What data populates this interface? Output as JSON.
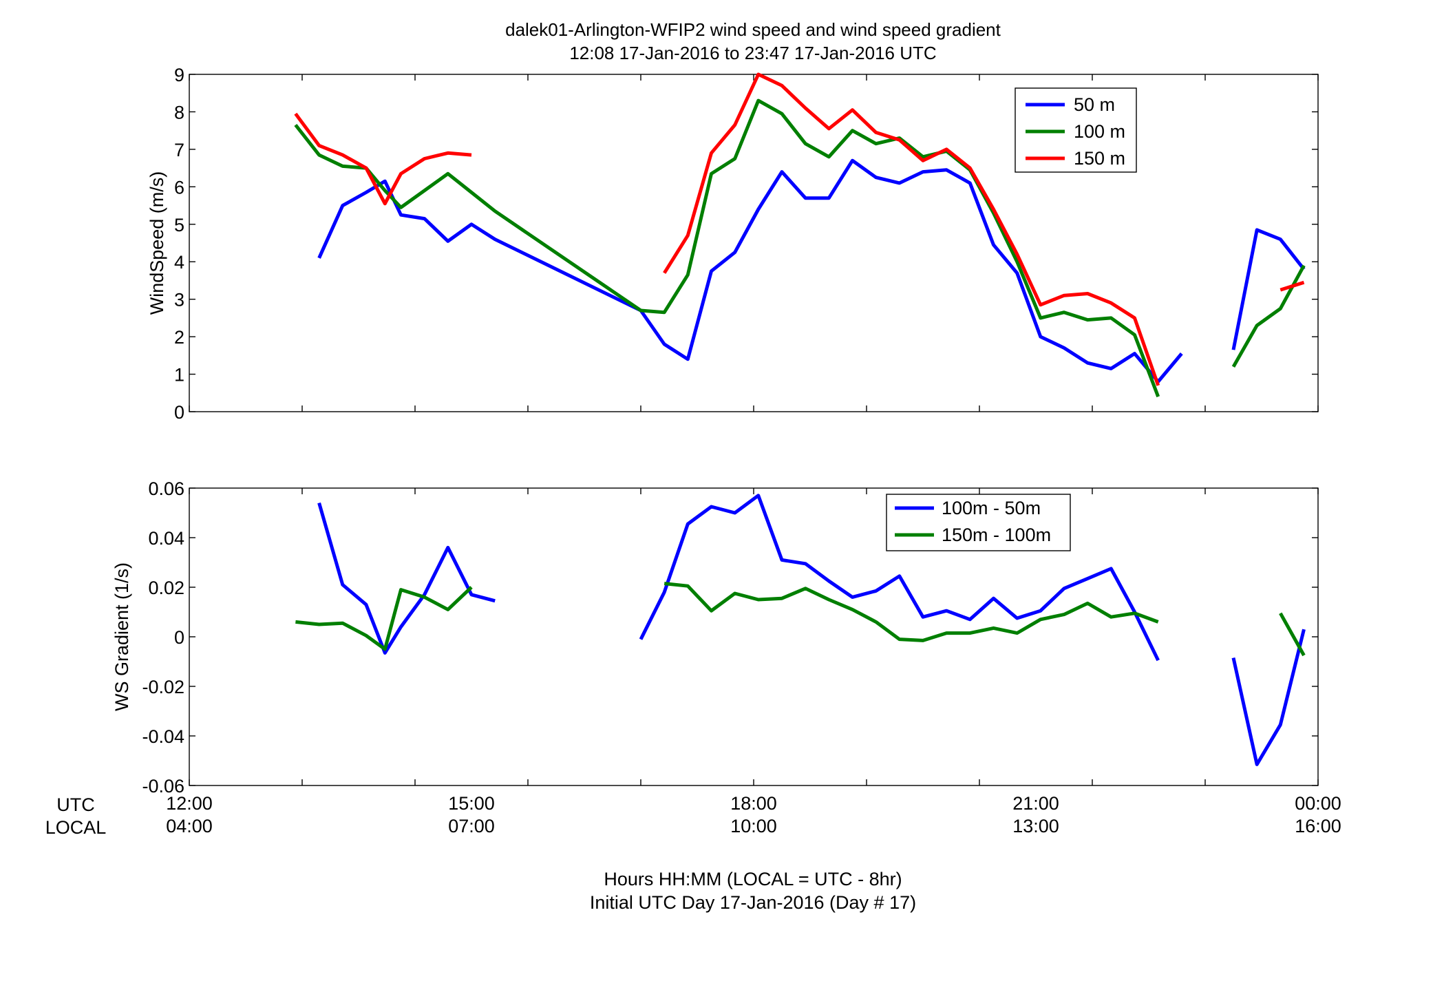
{
  "title_line1": "dalek01-Arlington-WFIP2  wind speed and wind speed gradient",
  "title_line2": "12:08 17-Jan-2016 to 23:47 17-Jan-2016  UTC",
  "xaxis": {
    "row_label_utc": "UTC",
    "row_label_local": "LOCAL",
    "range_hours": [
      12,
      24
    ],
    "ticks": [
      {
        "hour": 12,
        "utc": "12:00",
        "local": "04:00"
      },
      {
        "hour": 15,
        "utc": "15:00",
        "local": "07:00"
      },
      {
        "hour": 18,
        "utc": "18:00",
        "local": "10:00"
      },
      {
        "hour": 21,
        "utc": "21:00",
        "local": "13:00"
      },
      {
        "hour": 24,
        "utc": "00:00",
        "local": "16:00"
      }
    ],
    "minor_ticks_hours": [
      12,
      13.2,
      14.4,
      15.6,
      16.8,
      18,
      19.2,
      20.4,
      21.6,
      22.8,
      24
    ],
    "label_line1": "Hours HH:MM  (LOCAL = UTC - 8hr)",
    "label_line2": "Initial UTC Day 17-Jan-2016 (Day # 17)"
  },
  "chart_data": [
    {
      "type": "line",
      "ylabel": "WindSpeed (m/s)",
      "ylim": [
        0,
        9
      ],
      "yticks": [
        "0",
        "1",
        "2",
        "3",
        "4",
        "5",
        "6",
        "7",
        "8",
        "9"
      ],
      "legend_placement": "top-right",
      "series": [
        {
          "name": "50 m",
          "color": "#0000ff",
          "points": [
            [
              13.38,
              4.1
            ],
            [
              13.63,
              5.5
            ],
            [
              13.88,
              5.85
            ],
            [
              14.08,
              6.15
            ],
            [
              14.25,
              5.25
            ],
            [
              14.5,
              5.15
            ],
            [
              14.75,
              4.55
            ],
            [
              15.0,
              5.0
            ],
            [
              15.25,
              4.6
            ],
            [
              16.8,
              2.7
            ],
            [
              17.05,
              1.8
            ],
            [
              17.3,
              1.4
            ],
            [
              17.55,
              3.75
            ],
            [
              17.8,
              4.25
            ],
            [
              18.05,
              5.4
            ],
            [
              18.3,
              6.4
            ],
            [
              18.55,
              5.7
            ],
            [
              18.8,
              5.7
            ],
            [
              19.05,
              6.7
            ],
            [
              19.3,
              6.25
            ],
            [
              19.55,
              6.1
            ],
            [
              19.8,
              6.4
            ],
            [
              20.05,
              6.45
            ],
            [
              20.3,
              6.1
            ],
            [
              20.55,
              4.45
            ],
            [
              20.8,
              3.7
            ],
            [
              21.05,
              2.0
            ],
            [
              21.3,
              1.7
            ],
            [
              21.55,
              1.3
            ],
            [
              21.8,
              1.15
            ],
            [
              22.05,
              1.55
            ],
            [
              22.3,
              0.8
            ],
            [
              22.55,
              1.55
            ],
            null,
            [
              23.1,
              1.65
            ],
            [
              23.35,
              4.85
            ],
            [
              23.6,
              4.6
            ],
            [
              23.85,
              3.8
            ]
          ]
        },
        {
          "name": "100 m",
          "color": "#007f00",
          "points": [
            [
              13.13,
              7.65
            ],
            [
              13.38,
              6.85
            ],
            [
              13.63,
              6.55
            ],
            [
              13.88,
              6.5
            ],
            [
              14.08,
              5.9
            ],
            [
              14.25,
              5.45
            ],
            [
              14.5,
              5.9
            ],
            [
              14.75,
              6.35
            ],
            [
              15.0,
              5.85
            ],
            [
              15.25,
              5.35
            ],
            [
              16.8,
              2.7
            ],
            [
              17.05,
              2.65
            ],
            [
              17.3,
              3.65
            ],
            [
              17.55,
              6.35
            ],
            [
              17.8,
              6.75
            ],
            [
              18.05,
              8.3
            ],
            [
              18.3,
              7.95
            ],
            [
              18.55,
              7.15
            ],
            [
              18.8,
              6.8
            ],
            [
              19.05,
              7.5
            ],
            [
              19.3,
              7.15
            ],
            [
              19.55,
              7.3
            ],
            [
              19.8,
              6.8
            ],
            [
              20.05,
              6.95
            ],
            [
              20.3,
              6.45
            ],
            [
              20.55,
              5.3
            ],
            [
              20.8,
              4.0
            ],
            [
              21.05,
              2.5
            ],
            [
              21.3,
              2.65
            ],
            [
              21.55,
              2.45
            ],
            [
              21.8,
              2.5
            ],
            [
              22.05,
              2.05
            ],
            [
              22.3,
              0.4
            ],
            null,
            [
              23.1,
              1.2
            ],
            [
              23.35,
              2.3
            ],
            [
              23.6,
              2.75
            ],
            [
              23.85,
              3.9
            ]
          ]
        },
        {
          "name": "150 m",
          "color": "#ff0000",
          "points": [
            [
              13.13,
              7.95
            ],
            [
              13.38,
              7.1
            ],
            [
              13.63,
              6.85
            ],
            [
              13.88,
              6.5
            ],
            [
              14.08,
              5.55
            ],
            [
              14.25,
              6.35
            ],
            [
              14.5,
              6.75
            ],
            [
              14.75,
              6.9
            ],
            [
              15.0,
              6.85
            ],
            null,
            [
              17.05,
              3.7
            ],
            [
              17.3,
              4.7
            ],
            [
              17.55,
              6.9
            ],
            [
              17.8,
              7.65
            ],
            [
              18.05,
              9.0
            ],
            [
              18.3,
              8.7
            ],
            [
              18.55,
              8.1
            ],
            [
              18.8,
              7.55
            ],
            [
              19.05,
              8.05
            ],
            [
              19.3,
              7.45
            ],
            [
              19.55,
              7.25
            ],
            [
              19.8,
              6.7
            ],
            [
              20.05,
              7.0
            ],
            [
              20.3,
              6.5
            ],
            [
              20.55,
              5.4
            ],
            [
              20.8,
              4.2
            ],
            [
              21.05,
              2.85
            ],
            [
              21.3,
              3.1
            ],
            [
              21.55,
              3.15
            ],
            [
              21.8,
              2.9
            ],
            [
              22.05,
              2.5
            ],
            [
              22.3,
              0.7
            ],
            null,
            [
              23.6,
              3.25
            ],
            [
              23.85,
              3.45
            ]
          ]
        }
      ]
    },
    {
      "type": "line",
      "ylabel": "WS Gradient (1/s)",
      "ylim": [
        -0.06,
        0.06
      ],
      "yticks": [
        "-0.06",
        "-0.04",
        "-0.02",
        "0",
        "0.02",
        "0.04",
        "0.06"
      ],
      "legend_placement": "top-right",
      "series": [
        {
          "name": "100m - 50m",
          "color": "#0000ff",
          "points": [
            [
              13.38,
              0.054
            ],
            [
              13.63,
              0.021
            ],
            [
              13.88,
              0.013
            ],
            [
              14.08,
              -0.0065
            ],
            [
              14.25,
              0.004
            ],
            [
              14.5,
              0.017
            ],
            [
              14.75,
              0.036
            ],
            [
              15.0,
              0.017
            ],
            [
              15.25,
              0.0145
            ],
            null,
            [
              16.8,
              -0.001
            ],
            [
              17.05,
              0.018
            ],
            [
              17.3,
              0.0455
            ],
            [
              17.55,
              0.0525
            ],
            [
              17.8,
              0.05
            ],
            [
              18.05,
              0.057
            ],
            [
              18.3,
              0.031
            ],
            [
              18.55,
              0.0295
            ],
            [
              18.8,
              0.0225
            ],
            [
              19.05,
              0.016
            ],
            [
              19.3,
              0.0185
            ],
            [
              19.55,
              0.0245
            ],
            [
              19.8,
              0.008
            ],
            [
              20.05,
              0.0105
            ],
            [
              20.3,
              0.007
            ],
            [
              20.55,
              0.0155
            ],
            [
              20.8,
              0.0075
            ],
            [
              21.05,
              0.0105
            ],
            [
              21.3,
              0.0195
            ],
            [
              21.55,
              0.0235
            ],
            [
              21.8,
              0.0275
            ],
            [
              22.05,
              0.01
            ],
            [
              22.3,
              -0.0095
            ],
            null,
            [
              23.1,
              -0.0085
            ],
            [
              23.35,
              -0.0515
            ],
            [
              23.6,
              -0.0355
            ],
            [
              23.85,
              0.003
            ]
          ]
        },
        {
          "name": "150m - 100m",
          "color": "#007f00",
          "points": [
            [
              13.13,
              0.006
            ],
            [
              13.38,
              0.005
            ],
            [
              13.63,
              0.0055
            ],
            [
              13.88,
              0.0005
            ],
            [
              14.08,
              -0.005
            ],
            [
              14.25,
              0.019
            ],
            [
              14.5,
              0.016
            ],
            [
              14.75,
              0.011
            ],
            [
              15.0,
              0.02
            ],
            null,
            [
              17.05,
              0.0215
            ],
            [
              17.3,
              0.0205
            ],
            [
              17.55,
              0.0105
            ],
            [
              17.8,
              0.0175
            ],
            [
              18.05,
              0.015
            ],
            [
              18.3,
              0.0155
            ],
            [
              18.55,
              0.0195
            ],
            [
              18.8,
              0.015
            ],
            [
              19.05,
              0.011
            ],
            [
              19.3,
              0.006
            ],
            [
              19.55,
              -0.001
            ],
            [
              19.8,
              -0.0015
            ],
            [
              20.05,
              0.0015
            ],
            [
              20.3,
              0.0015
            ],
            [
              20.55,
              0.0035
            ],
            [
              20.8,
              0.0015
            ],
            [
              21.05,
              0.007
            ],
            [
              21.3,
              0.009
            ],
            [
              21.55,
              0.0135
            ],
            [
              21.8,
              0.008
            ],
            [
              22.05,
              0.0095
            ],
            [
              22.3,
              0.006
            ],
            null,
            [
              23.6,
              0.0095
            ],
            [
              23.85,
              -0.0075
            ]
          ]
        }
      ]
    }
  ]
}
